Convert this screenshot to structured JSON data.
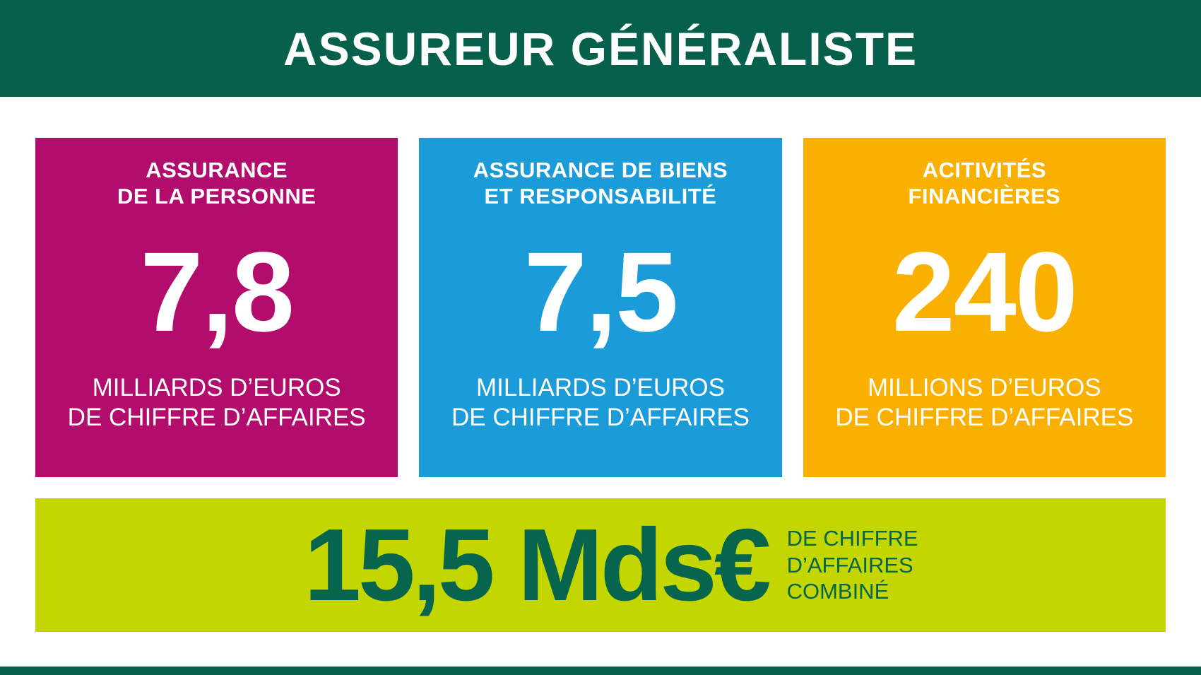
{
  "header": {
    "title": "ASSUREUR GÉNÉRALISTE"
  },
  "cards": [
    {
      "id": "assurance-de-la-personne",
      "title_lines": [
        "ASSURANCE",
        "DE LA PERSONNE"
      ],
      "value": "7,8",
      "caption_lines": [
        "MILLIARDS D’EUROS",
        "DE CHIFFRE D’AFFAIRES"
      ],
      "color": "#b20d6d"
    },
    {
      "id": "assurance-de-biens-et-responsabilite",
      "title_lines": [
        "ASSURANCE DE BIENS",
        "ET RESPONSABILITÉ"
      ],
      "value": "7,5",
      "caption_lines": [
        "MILLIARDS D’EUROS",
        "DE CHIFFRE D’AFFAIRES"
      ],
      "color": "#1b9cd8"
    },
    {
      "id": "activites-financieres",
      "title_lines": [
        "ACITIVITÉS",
        "FINANCIÈRES"
      ],
      "value": "240",
      "caption_lines": [
        "MILLIONS D’EUROS",
        "DE CHIFFRE D’AFFAIRES"
      ],
      "color": "#f9b000"
    }
  ],
  "total_banner": {
    "value": "15,5 Mds€",
    "caption_lines": [
      "DE CHIFFRE",
      "D’AFFAIRES",
      "COMBINÉ"
    ],
    "background": "#c3d600",
    "text_color": "#06654c"
  },
  "colors": {
    "header_green": "#06604b",
    "footer_green": "#06604b",
    "white": "#ffffff"
  },
  "chart_data": {
    "type": "table",
    "title": "ASSUREUR GÉNÉRALISTE",
    "categories": [
      "Assurance de la personne",
      "Assurance de biens et responsabilité",
      "Acitivités financières"
    ],
    "values": [
      7.8,
      7.5,
      240
    ],
    "units": [
      "milliards d’euros de chiffre d’affaires",
      "milliards d’euros de chiffre d’affaires",
      "millions d’euros de chiffre d’affaires"
    ],
    "total": {
      "value": 15.5,
      "unit": "Mds€ de chiffre d’affaires combiné"
    },
    "legend_position": "none",
    "grid": false
  }
}
